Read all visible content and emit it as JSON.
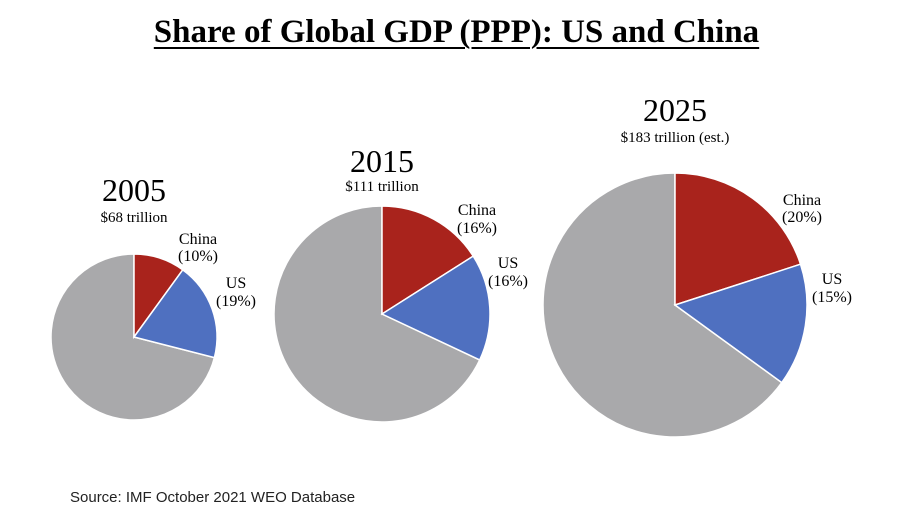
{
  "title": "Share of Global GDP (PPP): US and China",
  "source": "Source: IMF October 2021 WEO Database",
  "colors": {
    "china": "#a9231c",
    "us": "#4f70c0",
    "rest": "#a9a9ab"
  },
  "chart_data": [
    {
      "type": "pie",
      "year": "2005",
      "total": "$68 trillion",
      "slices": [
        {
          "name": "China",
          "pct_label": "(10%)",
          "value": 10
        },
        {
          "name": "US",
          "pct_label": "(19%)",
          "value": 19
        }
      ]
    },
    {
      "type": "pie",
      "year": "2015",
      "total": "$111 trillion",
      "slices": [
        {
          "name": "China",
          "pct_label": "(16%)",
          "value": 16
        },
        {
          "name": "US",
          "pct_label": "(16%)",
          "value": 16
        }
      ]
    },
    {
      "type": "pie",
      "year": "2025",
      "total": "$183 trillion (est.)",
      "slices": [
        {
          "name": "China",
          "pct_label": "(20%)",
          "value": 20
        },
        {
          "name": "US",
          "pct_label": "(15%)",
          "value": 15
        }
      ]
    }
  ]
}
